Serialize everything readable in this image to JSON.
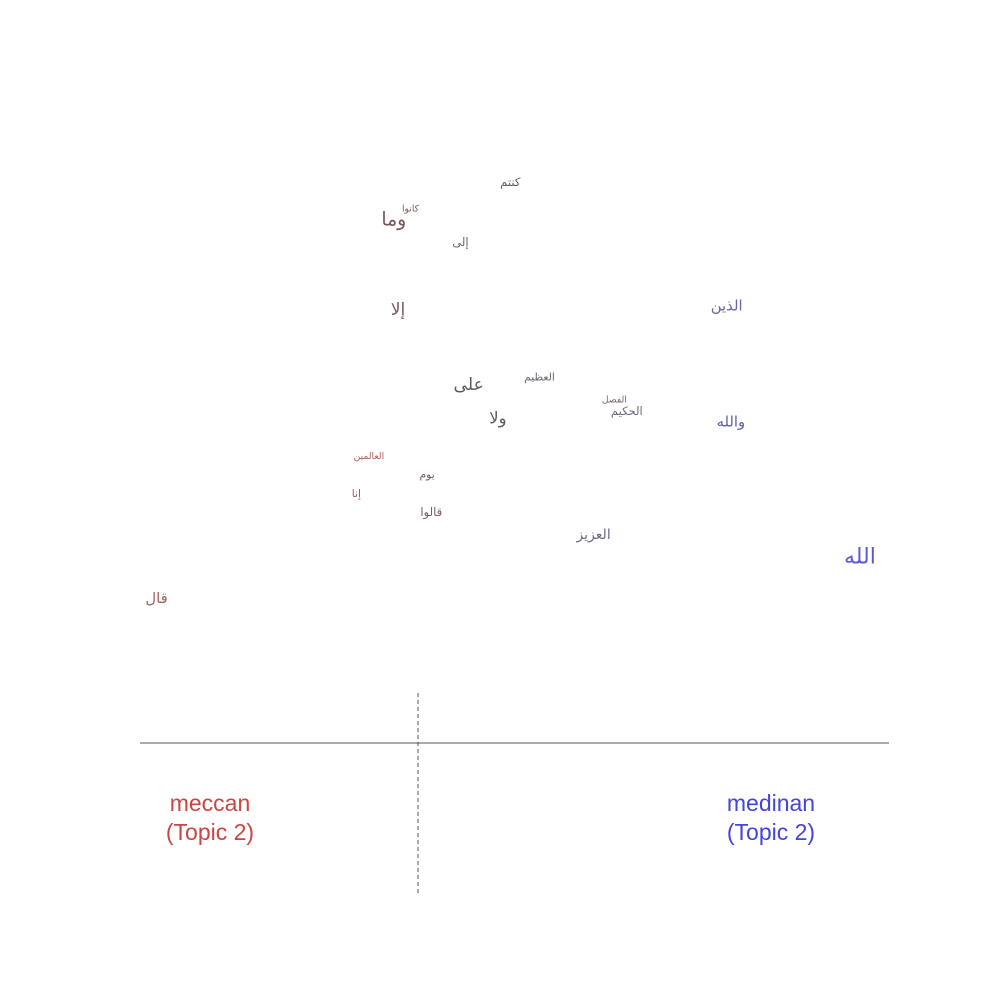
{
  "chart_data": {
    "type": "scatter",
    "title": "",
    "poles": {
      "left": {
        "name": "meccan",
        "topic": "(Topic 2)",
        "color": "#cc4444"
      },
      "right": {
        "name": "medinan",
        "topic": "(Topic 2)",
        "color": "#4444dd"
      }
    },
    "points": [
      {
        "word": "الله",
        "x": 0.98,
        "y": 0.38,
        "weight": 1.0,
        "color": "#5a5ad8"
      },
      {
        "word": "قال",
        "x": -0.71,
        "y": 0.27,
        "weight": 0.55,
        "color": "#a95f5f"
      },
      {
        "word": "العزيز",
        "x": 0.34,
        "y": 0.44,
        "weight": 0.5,
        "color": "#6a6a88"
      },
      {
        "word": "قالوا",
        "x": -0.05,
        "y": 0.5,
        "weight": 0.35,
        "color": "#755c5c"
      },
      {
        "word": "إنا",
        "x": -0.23,
        "y": 0.55,
        "weight": 0.3,
        "color": "#9a5c5c"
      },
      {
        "word": "يوم",
        "x": -0.06,
        "y": 0.6,
        "weight": 0.3,
        "color": "#705f5f"
      },
      {
        "word": "العالمين",
        "x": -0.2,
        "y": 0.65,
        "weight": 0.2,
        "color": "#b05a5a"
      },
      {
        "word": "والله",
        "x": 0.67,
        "y": 0.74,
        "weight": 0.55,
        "color": "#6060aa"
      },
      {
        "word": "ولا",
        "x": 0.11,
        "y": 0.75,
        "weight": 0.65,
        "color": "#5f5a5a"
      },
      {
        "word": "الحكيم",
        "x": 0.42,
        "y": 0.77,
        "weight": 0.35,
        "color": "#6a6a80"
      },
      {
        "word": "الفصل",
        "x": 0.39,
        "y": 0.8,
        "weight": 0.2,
        "color": "#77666a"
      },
      {
        "word": "على",
        "x": 0.04,
        "y": 0.84,
        "weight": 0.7,
        "color": "#5f5a5a"
      },
      {
        "word": "العظيم",
        "x": 0.21,
        "y": 0.86,
        "weight": 0.3,
        "color": "#6a6370"
      },
      {
        "word": "إلا",
        "x": -0.13,
        "y": 1.04,
        "weight": 0.7,
        "color": "#7a5a5a"
      },
      {
        "word": "الذين",
        "x": 0.66,
        "y": 1.05,
        "weight": 0.55,
        "color": "#6464aa"
      },
      {
        "word": "إلى",
        "x": 0.02,
        "y": 1.22,
        "weight": 0.35,
        "color": "#6b5f5f"
      },
      {
        "word": "وما",
        "x": -0.14,
        "y": 1.28,
        "weight": 0.8,
        "color": "#7a5555"
      },
      {
        "word": "كانوا",
        "x": -0.1,
        "y": 1.31,
        "weight": 0.2,
        "color": "#7a5f5f"
      },
      {
        "word": "كنتم",
        "x": 0.14,
        "y": 1.38,
        "weight": 0.35,
        "color": "#5a5a66"
      }
    ],
    "xlim": [
      -0.75,
      1.05
    ],
    "ylim": [
      0.0,
      1.6
    ],
    "grid": false
  }
}
